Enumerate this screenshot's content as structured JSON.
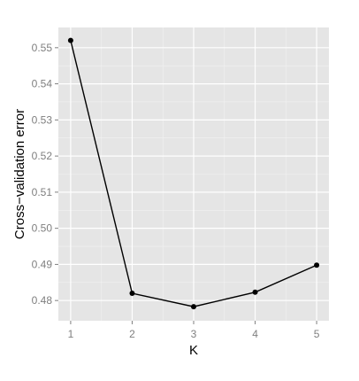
{
  "chart_data": {
    "type": "line",
    "title": "",
    "xlabel": "K",
    "ylabel": "Cross−validation error",
    "x": [
      1,
      2,
      3,
      4,
      5
    ],
    "series": [
      {
        "values": [
          0.552,
          0.482,
          0.4783,
          0.4823,
          0.4898
        ]
      }
    ],
    "xticks": [
      "1",
      "2",
      "3",
      "4",
      "5"
    ],
    "yticks": [
      "0.48",
      "0.49",
      "0.50",
      "0.51",
      "0.52",
      "0.53",
      "0.54",
      "0.55"
    ],
    "xlim": [
      0.8,
      5.2
    ],
    "ylim": [
      0.4744,
      0.5556
    ],
    "grid": true,
    "colors": {
      "panel": "#e5e5e5",
      "grid": "#ffffff",
      "line": "#000000",
      "tick_text": "#7f7f7f"
    }
  }
}
